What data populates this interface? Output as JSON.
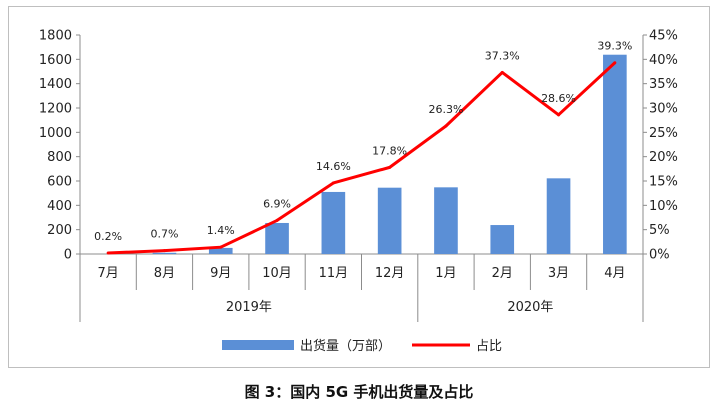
{
  "caption": "图 3：国内 5G 手机出货量及占比",
  "chart_data": {
    "type": "bar+line",
    "categories": [
      "7月",
      "8月",
      "9月",
      "10月",
      "11月",
      "12月",
      "1月",
      "2月",
      "3月",
      "4月"
    ],
    "year_groups": [
      {
        "label": "2019年",
        "start": 0,
        "end": 5
      },
      {
        "label": "2020年",
        "start": 6,
        "end": 9
      }
    ],
    "series": [
      {
        "name": "出货量（万部）",
        "type": "bar",
        "axis": "left",
        "color": "#5b8fd6",
        "values": [
          0,
          10,
          50,
          255,
          510,
          545,
          548,
          238,
          622,
          1638
        ]
      },
      {
        "name": "占比",
        "type": "line",
        "axis": "right",
        "color": "#ff0000",
        "values": [
          0.2,
          0.7,
          1.4,
          6.9,
          14.6,
          17.8,
          26.3,
          37.3,
          28.6,
          39.3
        ],
        "labels": [
          "0.2%",
          "0.7%",
          "1.4%",
          "6.9%",
          "14.6%",
          "17.8%",
          "26.3%",
          "37.3%",
          "28.6%",
          "39.3%"
        ]
      }
    ],
    "y_left": {
      "min": 0,
      "max": 1800,
      "ticks": [
        "0",
        "200",
        "400",
        "600",
        "800",
        "1000",
        "1200",
        "1400",
        "1600",
        "1800"
      ]
    },
    "y_right": {
      "min": 0,
      "max": 45,
      "ticks": [
        "0%",
        "5%",
        "10%",
        "15%",
        "20%",
        "25%",
        "30%",
        "35%",
        "40%",
        "45%"
      ]
    },
    "legend_position": "bottom",
    "grid": false
  }
}
